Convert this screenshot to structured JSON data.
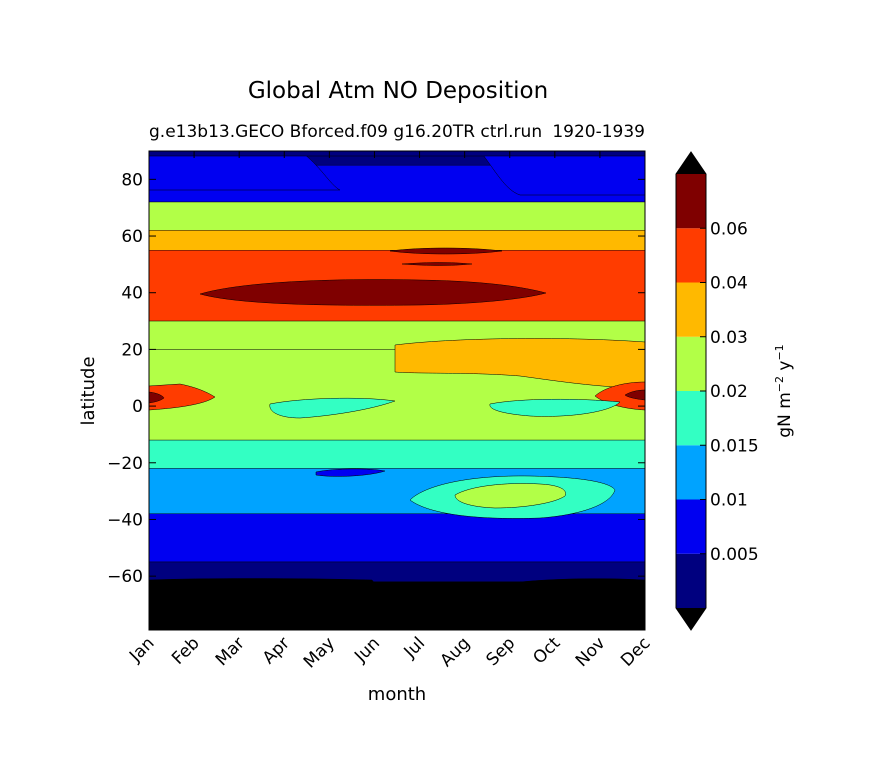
{
  "chart_data": {
    "type": "heatmap",
    "title": "Global Atm NO Deposition",
    "subtitle_left": "g.e13b13.GECO Bforced.f09 g16.20TR ctrl.run",
    "subtitle_right": "1920-1939",
    "xlabel": "month",
    "ylabel": "latitude",
    "x_ticks": [
      "Jan",
      "Feb",
      "Mar",
      "Apr",
      "May",
      "Jun",
      "Jul",
      "Aug",
      "Sep",
      "Oct",
      "Nov",
      "Dec"
    ],
    "y_ticks": [
      80,
      60,
      40,
      20,
      0,
      -20,
      -40,
      -60
    ],
    "ylim": [
      -79,
      90
    ],
    "colorbar": {
      "label": "gN m$^{-2}$ y$^{-1}$",
      "label_base": "gN m",
      "label_exp1": "−2",
      "label_mid": " y",
      "label_exp2": "−1",
      "levels": [
        0,
        0.005,
        0.01,
        0.015,
        0.02,
        0.03,
        0.04,
        0.06,
        0.07
      ],
      "tick_labels": [
        "0.005",
        "0.01",
        "0.015",
        "0.02",
        "0.03",
        "0.04",
        "0.06"
      ],
      "colors": [
        "#00007f",
        "#0000f1",
        "#00a3ff",
        "#33ffc3",
        "#b2ff47",
        "#ffb900",
        "#ff3c00",
        "#7f0000"
      ],
      "under_color": "#000000",
      "over_color": "#000000",
      "extend": "both"
    },
    "field": {
      "description_note": "",
      "bands": [
        {
          "lat_min": 85,
          "lat_max": 90,
          "value": 0.004
        },
        {
          "lat_min": 72,
          "lat_max": 85,
          "value": 0.008
        },
        {
          "lat_min": 62,
          "lat_max": 72,
          "value": 0.022
        },
        {
          "lat_min": 55,
          "lat_max": 62,
          "value": 0.035
        },
        {
          "lat_min": 30,
          "lat_max": 55,
          "value": 0.045
        },
        {
          "lat_min": 20,
          "lat_max": 30,
          "value": 0.025
        },
        {
          "lat_min": -12,
          "lat_max": 20,
          "value": 0.022
        },
        {
          "lat_min": -22,
          "lat_max": -12,
          "value": 0.017
        },
        {
          "lat_min": -38,
          "lat_max": -22,
          "value": 0.012
        },
        {
          "lat_min": -55,
          "lat_max": -38,
          "value": 0.007
        },
        {
          "lat_min": -62,
          "lat_max": -55,
          "value": 0.003
        },
        {
          "lat_min": -79,
          "lat_max": -62,
          "value": -0.001
        }
      ]
    }
  }
}
